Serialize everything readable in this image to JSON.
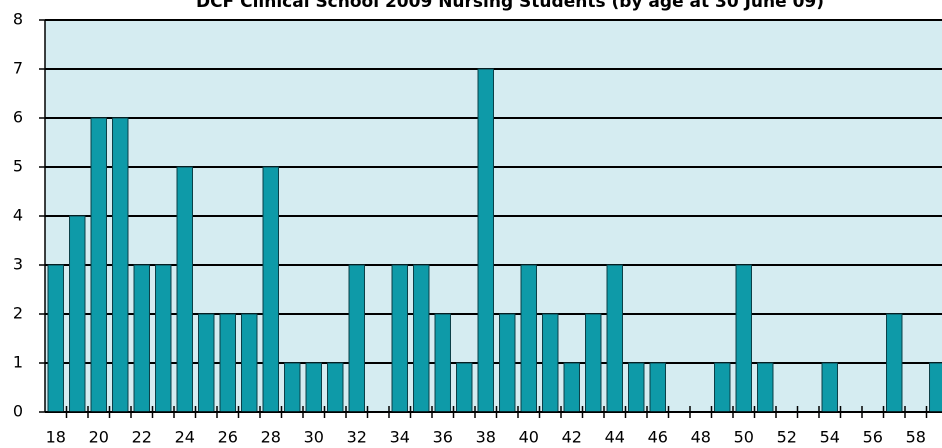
{
  "chart_data": {
    "type": "bar",
    "title": "DCF Clinical School 2009 Nursing Students (by age at 30 June 09)",
    "categories": [
      18,
      null,
      20,
      null,
      22,
      null,
      24,
      null,
      26,
      null,
      28,
      null,
      30,
      null,
      32,
      null,
      34,
      null,
      36,
      null,
      38,
      null,
      40,
      null,
      42,
      null,
      44,
      null,
      46,
      null,
      48,
      null,
      50,
      null,
      52,
      null,
      54,
      null,
      56,
      null,
      58,
      null
    ],
    "values": [
      3,
      4,
      6,
      6,
      3,
      3,
      5,
      2,
      2,
      2,
      5,
      1,
      1,
      1,
      3,
      0,
      3,
      3,
      2,
      1,
      7,
      2,
      3,
      2,
      1,
      2,
      3,
      1,
      1,
      0,
      0,
      1,
      3,
      1,
      0,
      0,
      1,
      0,
      0,
      2,
      0,
      1
    ],
    "color": "#0e9aa8",
    "ylim": [
      0,
      8
    ],
    "yticks": [
      0,
      1,
      2,
      3,
      4,
      5,
      6,
      7,
      8
    ],
    "grid": true
  }
}
